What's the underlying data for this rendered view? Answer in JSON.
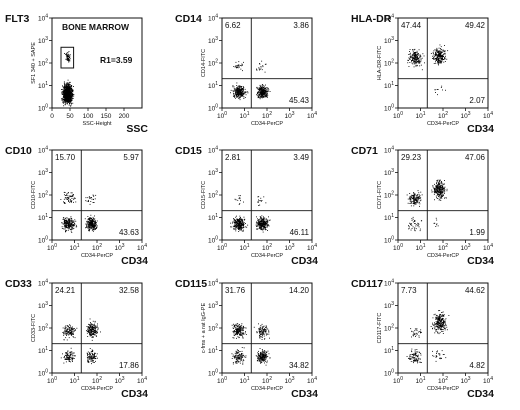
{
  "chart_data": [
    {
      "type": "scatter",
      "title": "FLT3",
      "inset_label": "BONE MARROW",
      "gate_label": "R1=3.59",
      "xlabel_small": "SSC-Height",
      "xlabel": "SSC",
      "ylabel": "SF1 340 + SAPE",
      "x_ticks": [
        "0",
        "50",
        "100",
        "150",
        "200"
      ],
      "y_ticks": [
        "10^0",
        "10^1",
        "10^2",
        "10^3",
        "10^4"
      ],
      "x_scale": "linear",
      "y_scale": "log",
      "xlim": [
        0,
        250
      ],
      "ylim": [
        1,
        10000
      ],
      "gate": {
        "x": [
          25,
          60
        ],
        "y": [
          60,
          500
        ]
      },
      "populations": [
        {
          "x": [
            20,
            65
          ],
          "y": [
            1,
            20
          ],
          "n": 900
        },
        {
          "x": [
            30,
            55
          ],
          "y": [
            80,
            400
          ],
          "n": 60
        }
      ],
      "quadrant_values": null
    },
    {
      "type": "scatter",
      "title": "CD14",
      "ylabel": "CD14-FITC",
      "xlabel_small": "CD34-PerCP",
      "xlabel": "",
      "x_ticks": [
        "10^0",
        "10^1",
        "10^2",
        "10^3",
        "10^4"
      ],
      "y_ticks": [
        "10^0",
        "10^1",
        "10^2",
        "10^3",
        "10^4"
      ],
      "x_scale": "log",
      "y_scale": "log",
      "quadrant": {
        "x": 20,
        "y": 20
      },
      "quadrant_values": {
        "upper_left": "6.62",
        "upper_right": "3.86",
        "lower_left": "",
        "lower_right": "45.43"
      },
      "populations": [
        {
          "x": [
            2,
            15
          ],
          "y": [
            2,
            15
          ],
          "n": 260
        },
        {
          "x": [
            25,
            150
          ],
          "y": [
            2,
            15
          ],
          "n": 260
        },
        {
          "x": [
            2,
            15
          ],
          "y": [
            30,
            200
          ],
          "n": 25
        },
        {
          "x": [
            25,
            120
          ],
          "y": [
            30,
            150
          ],
          "n": 18
        }
      ]
    },
    {
      "type": "scatter",
      "title": "HLA-DR",
      "ylabel": "HLA-DR-FITC",
      "xlabel_small": "CD34-PerCP",
      "xlabel": "CD34",
      "x_ticks": [
        "10^0",
        "10^1",
        "10^2",
        "10^3",
        "10^4"
      ],
      "y_ticks": [
        "10^0",
        "10^1",
        "10^2",
        "10^3",
        "10^4"
      ],
      "x_scale": "log",
      "y_scale": "log",
      "quadrant": {
        "x": 20,
        "y": 20
      },
      "quadrant_values": {
        "upper_left": "47.44",
        "upper_right": "49.42",
        "lower_left": "",
        "lower_right": "2.07"
      },
      "populations": [
        {
          "x": [
            2,
            15
          ],
          "y": [
            50,
            600
          ],
          "n": 180
        },
        {
          "x": [
            25,
            180
          ],
          "y": [
            60,
            800
          ],
          "n": 220
        },
        {
          "x": [
            25,
            150
          ],
          "y": [
            3,
            15
          ],
          "n": 10
        }
      ]
    },
    {
      "type": "scatter",
      "title": "CD10",
      "ylabel": "CD10-FITC",
      "xlabel_small": "CD34-PerCP",
      "xlabel": "CD34",
      "x_ticks": [
        "10^0",
        "10^1",
        "10^2",
        "10^3",
        "10^4"
      ],
      "y_ticks": [
        "10^0",
        "10^1",
        "10^2",
        "10^3",
        "10^4"
      ],
      "x_scale": "log",
      "y_scale": "log",
      "quadrant": {
        "x": 20,
        "y": 20
      },
      "quadrant_values": {
        "upper_left": "15.70",
        "upper_right": "5.97",
        "lower_left": "",
        "lower_right": "43.63"
      },
      "populations": [
        {
          "x": [
            2,
            15
          ],
          "y": [
            2,
            15
          ],
          "n": 220
        },
        {
          "x": [
            25,
            120
          ],
          "y": [
            2,
            15
          ],
          "n": 260
        },
        {
          "x": [
            2,
            15
          ],
          "y": [
            30,
            200
          ],
          "n": 60
        },
        {
          "x": [
            25,
            100
          ],
          "y": [
            30,
            150
          ],
          "n": 25
        }
      ]
    },
    {
      "type": "scatter",
      "title": "CD15",
      "ylabel": "CD15-FITC",
      "xlabel_small": "CD34-PerCP",
      "xlabel": "CD34",
      "x_ticks": [
        "10^0",
        "10^1",
        "10^2",
        "10^3",
        "10^4"
      ],
      "y_ticks": [
        "10^0",
        "10^1",
        "10^2",
        "10^3",
        "10^4"
      ],
      "x_scale": "log",
      "y_scale": "log",
      "quadrant": {
        "x": 20,
        "y": 20
      },
      "quadrant_values": {
        "upper_left": "2.81",
        "upper_right": "3.49",
        "lower_left": "",
        "lower_right": "46.11"
      },
      "populations": [
        {
          "x": [
            2,
            15
          ],
          "y": [
            2,
            15
          ],
          "n": 260
        },
        {
          "x": [
            25,
            150
          ],
          "y": [
            2,
            15
          ],
          "n": 260
        },
        {
          "x": [
            2,
            15
          ],
          "y": [
            30,
            150
          ],
          "n": 12
        },
        {
          "x": [
            25,
            100
          ],
          "y": [
            30,
            120
          ],
          "n": 15
        }
      ]
    },
    {
      "type": "scatter",
      "title": "CD71",
      "ylabel": "CD71-FITC",
      "xlabel_small": "CD34-PerCP",
      "xlabel": "CD34",
      "x_ticks": [
        "10^0",
        "10^1",
        "10^2",
        "10^3",
        "10^4"
      ],
      "y_ticks": [
        "10^0",
        "10^1",
        "10^2",
        "10^3",
        "10^4"
      ],
      "x_scale": "log",
      "y_scale": "log",
      "quadrant": {
        "x": 20,
        "y": 20
      },
      "quadrant_values": {
        "upper_left": "29.23",
        "upper_right": "47.06",
        "lower_left": "",
        "lower_right": "1.99"
      },
      "populations": [
        {
          "x": [
            2,
            15
          ],
          "y": [
            25,
            200
          ],
          "n": 140
        },
        {
          "x": [
            25,
            180
          ],
          "y": [
            40,
            800
          ],
          "n": 240
        },
        {
          "x": [
            2,
            15
          ],
          "y": [
            2,
            15
          ],
          "n": 40
        },
        {
          "x": [
            25,
            120
          ],
          "y": [
            3,
            15
          ],
          "n": 8
        }
      ]
    },
    {
      "type": "scatter",
      "title": "CD33",
      "ylabel": "CD33-FITC",
      "xlabel_small": "CD34-PerCP",
      "xlabel": "CD34",
      "x_ticks": [
        "10^0",
        "10^1",
        "10^2",
        "10^3",
        "10^4"
      ],
      "y_ticks": [
        "10^0",
        "10^1",
        "10^2",
        "10^3",
        "10^4"
      ],
      "x_scale": "log",
      "y_scale": "log",
      "quadrant": {
        "x": 20,
        "y": 20
      },
      "quadrant_values": {
        "upper_left": "24.21",
        "upper_right": "32.58",
        "lower_left": "",
        "lower_right": "17.86"
      },
      "populations": [
        {
          "x": [
            2,
            15
          ],
          "y": [
            25,
            200
          ],
          "n": 120
        },
        {
          "x": [
            25,
            150
          ],
          "y": [
            25,
            300
          ],
          "n": 180
        },
        {
          "x": [
            2,
            15
          ],
          "y": [
            2,
            15
          ],
          "n": 90
        },
        {
          "x": [
            25,
            130
          ],
          "y": [
            2,
            15
          ],
          "n": 100
        }
      ]
    },
    {
      "type": "scatter",
      "title": "CD115",
      "ylabel": "c-fms + a rat IgG-PE",
      "xlabel_small": "CD34-PerCP",
      "xlabel": "CD34",
      "x_ticks": [
        "10^0",
        "10^1",
        "10^2",
        "10^3",
        "10^4"
      ],
      "y_ticks": [
        "10^0",
        "10^1",
        "10^2",
        "10^3",
        "10^4"
      ],
      "x_scale": "log",
      "y_scale": "log",
      "quadrant": {
        "x": 20,
        "y": 20
      },
      "quadrant_values": {
        "upper_left": "31.76",
        "upper_right": "14.20",
        "lower_left": "",
        "lower_right": "34.82"
      },
      "populations": [
        {
          "x": [
            2,
            15
          ],
          "y": [
            25,
            250
          ],
          "n": 170
        },
        {
          "x": [
            25,
            150
          ],
          "y": [
            25,
            200
          ],
          "n": 100
        },
        {
          "x": [
            2,
            15
          ],
          "y": [
            2,
            15
          ],
          "n": 110
        },
        {
          "x": [
            25,
            150
          ],
          "y": [
            2,
            15
          ],
          "n": 190
        }
      ]
    },
    {
      "type": "scatter",
      "title": "CD117",
      "ylabel": "CD117-FITC",
      "xlabel_small": "CD34-PerCP",
      "xlabel": "CD34",
      "x_ticks": [
        "10^0",
        "10^1",
        "10^2",
        "10^3",
        "10^4"
      ],
      "y_ticks": [
        "10^0",
        "10^1",
        "10^2",
        "10^3",
        "10^4"
      ],
      "x_scale": "log",
      "y_scale": "log",
      "quadrant": {
        "x": 20,
        "y": 20
      },
      "quadrant_values": {
        "upper_left": "7.73",
        "upper_right": "44.62",
        "lower_left": "",
        "lower_right": "4.82"
      },
      "populations": [
        {
          "x": [
            2,
            15
          ],
          "y": [
            2,
            15
          ],
          "n": 90
        },
        {
          "x": [
            25,
            200
          ],
          "y": [
            40,
            900
          ],
          "n": 240
        },
        {
          "x": [
            2,
            15
          ],
          "y": [
            25,
            150
          ],
          "n": 30
        },
        {
          "x": [
            25,
            150
          ],
          "y": [
            3,
            15
          ],
          "n": 25
        }
      ]
    }
  ]
}
